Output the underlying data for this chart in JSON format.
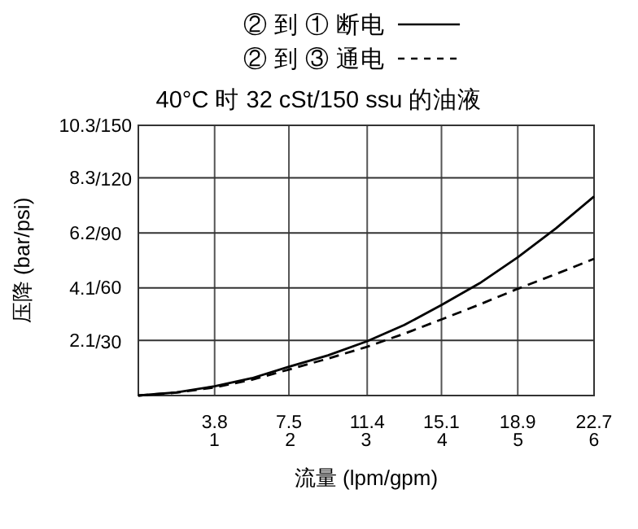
{
  "chart_data": {
    "type": "line",
    "title": "40°C 时 32 cSt/150 ssu 的油液",
    "xlabel": "流量 (lpm/gpm)",
    "ylabel": "压降 (bar/psi)",
    "xlim": [
      0,
      22.7
    ],
    "ylim": [
      0,
      10.3
    ],
    "xticks": [
      3.8,
      7.5,
      11.4,
      15.1,
      18.9,
      22.7
    ],
    "x2lim": [
      0,
      6
    ],
    "x2ticks": [
      1,
      2,
      3,
      4,
      5,
      6
    ],
    "yticks": [
      2.1,
      4.1,
      6.2,
      8.3,
      10.3
    ],
    "y2lim": [
      0,
      150
    ],
    "y2ticks": [
      {
        "value": 30,
        "label": "/30"
      },
      {
        "value": 60,
        "label": "/60"
      },
      {
        "value": 90,
        "label": "/90"
      },
      {
        "value": 120,
        "label": "/120"
      },
      {
        "value": 150,
        "label": "/150"
      }
    ],
    "grid": true,
    "legend": "top",
    "marker": "none",
    "x": [
      0,
      1.9,
      3.8,
      5.65,
      7.5,
      9.45,
      11.4,
      13.25,
      15.1,
      17.0,
      18.9,
      20.8,
      22.7
    ],
    "series": [
      {
        "name": "② 到 ① 断电",
        "color": "#000000",
        "line_style": "solid",
        "values": [
          0,
          0.12,
          0.35,
          0.66,
          1.1,
          1.53,
          2.07,
          2.69,
          3.45,
          4.28,
          5.27,
          6.37,
          7.59
        ]
      },
      {
        "name": "② 到 ③ 通电",
        "color": "#000000",
        "line_style": "dashed",
        "values": [
          0,
          0.11,
          0.31,
          0.6,
          0.99,
          1.41,
          1.86,
          2.36,
          2.9,
          3.47,
          4.07,
          4.63,
          5.21
        ]
      }
    ]
  }
}
